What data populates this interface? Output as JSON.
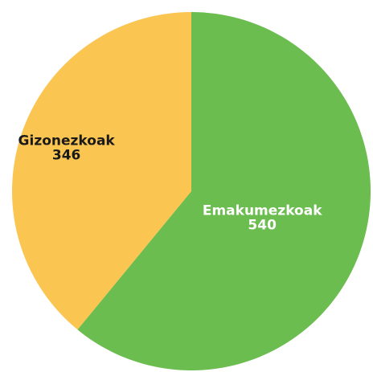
{
  "chart_data": {
    "type": "pie",
    "start_angle_deg": 0,
    "direction": "clockwise",
    "slices": [
      {
        "label": "Emakumezkoak",
        "value": 540,
        "color": "#6bbd4f",
        "label_color": "#ffffff"
      },
      {
        "label": "Gizonezkoak",
        "value": 346,
        "color": "#fbc552",
        "label_color": "#1a1a1a"
      }
    ]
  }
}
